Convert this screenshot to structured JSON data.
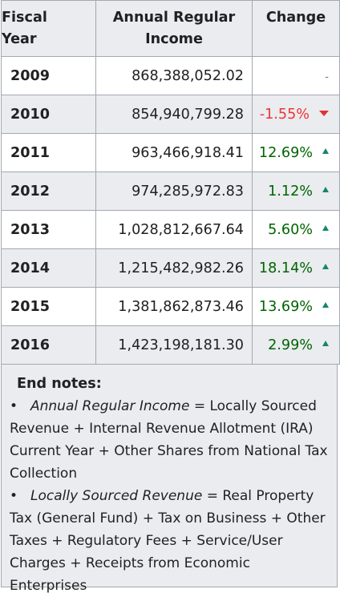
{
  "table": {
    "headers": {
      "year": [
        "Fiscal",
        "Year"
      ],
      "income": [
        "Annual Regular",
        "Income"
      ],
      "change": "Change"
    },
    "rows": [
      {
        "year": "2009",
        "income": "868,388,052.02",
        "change": "-",
        "trend": "none"
      },
      {
        "year": "2010",
        "income": "854,940,799.28",
        "change": "-1.55%",
        "trend": "down"
      },
      {
        "year": "2011",
        "income": "963,466,918.41",
        "change": "12.69%",
        "trend": "up"
      },
      {
        "year": "2012",
        "income": "974,285,972.83",
        "change": "1.12%",
        "trend": "up"
      },
      {
        "year": "2013",
        "income": "1,028,812,667.64",
        "change": "5.60%",
        "trend": "up"
      },
      {
        "year": "2014",
        "income": "1,215,482,982.26",
        "change": "18.14%",
        "trend": "up"
      },
      {
        "year": "2015",
        "income": "1,381,862,873.46",
        "change": "13.69%",
        "trend": "up"
      },
      {
        "year": "2016",
        "income": "1,423,198,181.30",
        "change": "2.99%",
        "trend": "up"
      }
    ]
  },
  "end_notes": {
    "title": "End notes:",
    "items": [
      {
        "term": "Annual Regular Income",
        "definition": " = Locally Sourced Revenue + Internal Revenue Allotment (IRA) Current Year + Other Shares from National Tax Collection"
      },
      {
        "term": "Locally Sourced Revenue",
        "definition": " = Real Property Tax (General Fund) + Tax on Business + Other Taxes + Regulatory Fees + Service/User Charges + Receipts from Economic Enterprises"
      }
    ]
  },
  "colors": {
    "header_bg": "#eaecf0",
    "border": "#a2a9b1",
    "increase_text": "#006400",
    "increase_arrow": "#14866d",
    "decrease_text": "#ee3333",
    "decrease_arrow": "#dd3333",
    "bullet_icon": "bullet-dot-icon"
  }
}
